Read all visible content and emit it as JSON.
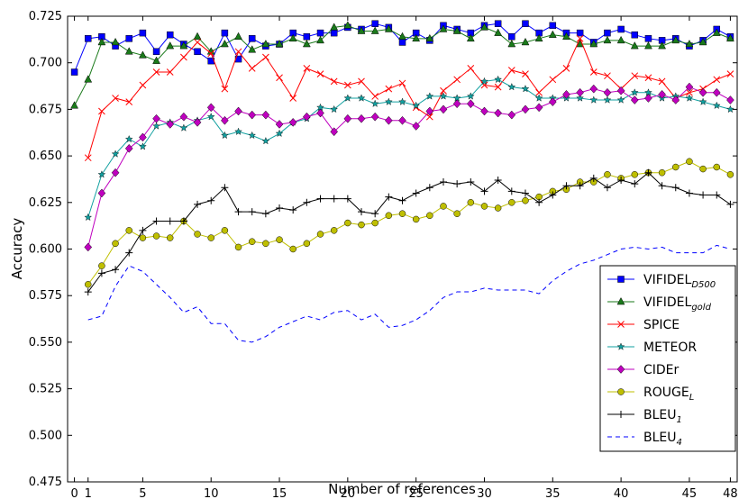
{
  "chart_data": {
    "type": "line",
    "xlabel": "Number of references",
    "ylabel": "Accuracy",
    "xlim": [
      -0.5,
      48.5
    ],
    "ylim": [
      0.475,
      0.725
    ],
    "xticks": [
      0,
      1,
      5,
      10,
      15,
      20,
      25,
      30,
      35,
      40,
      45,
      48
    ],
    "yticks": [
      {
        "value": 0.475,
        "label": "0.475"
      },
      {
        "value": 0.5,
        "label": "0.500"
      },
      {
        "value": 0.525,
        "label": "0.525"
      },
      {
        "value": 0.55,
        "label": "0.550"
      },
      {
        "value": 0.575,
        "label": "0.575"
      },
      {
        "value": 0.6,
        "label": "0.600"
      },
      {
        "value": 0.625,
        "label": "0.625"
      },
      {
        "value": 0.65,
        "label": "0.650"
      },
      {
        "value": 0.675,
        "label": "0.675"
      },
      {
        "value": 0.7,
        "label": "0.700"
      },
      {
        "value": 0.725,
        "label": "0.725"
      }
    ],
    "legend": "lower right",
    "x": [
      0,
      1,
      2,
      3,
      4,
      5,
      6,
      7,
      8,
      9,
      10,
      11,
      12,
      13,
      14,
      15,
      16,
      17,
      18,
      19,
      20,
      21,
      22,
      23,
      24,
      25,
      26,
      27,
      28,
      29,
      30,
      31,
      32,
      33,
      34,
      35,
      36,
      37,
      38,
      39,
      40,
      41,
      42,
      43,
      44,
      45,
      46,
      47,
      48
    ],
    "series": [
      {
        "name": "VIFIDEL",
        "name_sub": "D500",
        "color": "#0000ff",
        "marker": "square",
        "linestyle": "solid",
        "values": [
          0.695,
          0.713,
          0.714,
          0.709,
          0.713,
          0.716,
          0.706,
          0.715,
          0.71,
          0.706,
          0.701,
          0.716,
          0.702,
          0.713,
          0.709,
          0.71,
          0.716,
          0.714,
          0.716,
          0.716,
          0.719,
          0.718,
          0.721,
          0.719,
          0.711,
          0.716,
          0.712,
          0.72,
          0.718,
          0.716,
          0.72,
          0.721,
          0.714,
          0.721,
          0.716,
          0.72,
          0.716,
          0.716,
          0.711,
          0.716,
          0.718,
          0.715,
          0.713,
          0.712,
          0.713,
          0.709,
          0.712,
          0.718,
          0.714
        ]
      },
      {
        "name": "VIFIDEL",
        "name_sub": "gold",
        "color": "#1a7a1a",
        "marker": "triangle",
        "linestyle": "solid",
        "values": [
          0.677,
          0.691,
          0.711,
          0.711,
          0.706,
          0.704,
          0.701,
          0.709,
          0.709,
          0.714,
          0.706,
          0.71,
          0.714,
          0.707,
          0.71,
          0.71,
          0.713,
          0.71,
          0.712,
          0.719,
          0.72,
          0.717,
          0.717,
          0.718,
          0.714,
          0.713,
          0.713,
          0.718,
          0.717,
          0.713,
          0.719,
          0.716,
          0.71,
          0.711,
          0.713,
          0.715,
          0.714,
          0.71,
          0.71,
          0.712,
          0.712,
          0.709,
          0.709,
          0.709,
          0.712,
          0.71,
          0.711,
          0.716,
          0.713
        ]
      },
      {
        "name": "SPICE",
        "color": "#ff0000",
        "marker": "x",
        "linestyle": "solid",
        "values": [
          null,
          0.649,
          0.674,
          0.681,
          0.679,
          0.688,
          0.695,
          0.695,
          0.703,
          0.711,
          0.705,
          0.686,
          0.706,
          0.697,
          0.703,
          0.692,
          0.681,
          0.697,
          0.694,
          0.69,
          0.688,
          0.69,
          0.682,
          0.686,
          0.689,
          0.676,
          0.671,
          0.685,
          0.691,
          0.697,
          0.688,
          0.687,
          0.696,
          0.694,
          0.684,
          0.691,
          0.697,
          0.713,
          0.695,
          0.693,
          0.686,
          0.693,
          0.692,
          0.69,
          0.681,
          0.684,
          0.686,
          0.691,
          0.694
        ]
      },
      {
        "name": "METEOR",
        "color": "#12a0a0",
        "marker": "star",
        "linestyle": "solid",
        "values": [
          null,
          0.617,
          0.64,
          0.651,
          0.659,
          0.655,
          0.666,
          0.668,
          0.665,
          0.669,
          0.671,
          0.661,
          0.663,
          0.661,
          0.658,
          0.662,
          0.668,
          0.67,
          0.676,
          0.675,
          0.681,
          0.681,
          0.678,
          0.679,
          0.679,
          0.677,
          0.682,
          0.682,
          0.681,
          0.682,
          0.69,
          0.691,
          0.687,
          0.686,
          0.681,
          0.681,
          0.681,
          0.681,
          0.68,
          0.68,
          0.68,
          0.684,
          0.684,
          0.681,
          0.682,
          0.681,
          0.679,
          0.677,
          0.675
        ]
      },
      {
        "name": "CIDEr",
        "color": "#bf00bf",
        "marker": "diamond",
        "linestyle": "solid",
        "values": [
          null,
          0.601,
          0.63,
          0.641,
          0.654,
          0.66,
          0.67,
          0.667,
          0.671,
          0.668,
          0.676,
          0.669,
          0.674,
          0.672,
          0.672,
          0.667,
          0.668,
          0.671,
          0.673,
          0.663,
          0.67,
          0.67,
          0.671,
          0.669,
          0.669,
          0.666,
          0.674,
          0.675,
          0.678,
          0.678,
          0.674,
          0.673,
          0.672,
          0.675,
          0.676,
          0.679,
          0.683,
          0.684,
          0.686,
          0.684,
          0.685,
          0.68,
          0.681,
          0.683,
          0.68,
          0.687,
          0.684,
          0.684,
          0.68
        ]
      },
      {
        "name": "ROUGE",
        "name_sub": "L",
        "color": "#bfbf00",
        "marker": "circle",
        "linestyle": "solid",
        "values": [
          null,
          0.581,
          0.591,
          0.603,
          0.61,
          0.606,
          0.607,
          0.606,
          0.615,
          0.608,
          0.606,
          0.61,
          0.601,
          0.604,
          0.603,
          0.605,
          0.6,
          0.603,
          0.608,
          0.61,
          0.614,
          0.613,
          0.614,
          0.618,
          0.619,
          0.616,
          0.618,
          0.623,
          0.619,
          0.625,
          0.623,
          0.622,
          0.625,
          0.626,
          0.628,
          0.631,
          0.632,
          0.636,
          0.636,
          0.64,
          0.638,
          0.64,
          0.641,
          0.641,
          0.644,
          0.647,
          0.643,
          0.644,
          0.64
        ]
      },
      {
        "name": "BLEU",
        "name_sub": "1",
        "color": "#000000",
        "marker": "plus",
        "linestyle": "solid",
        "values": [
          null,
          0.577,
          0.587,
          0.589,
          0.598,
          0.61,
          0.615,
          0.615,
          0.615,
          0.624,
          0.626,
          0.633,
          0.62,
          0.62,
          0.619,
          0.622,
          0.621,
          0.625,
          0.627,
          0.627,
          0.627,
          0.62,
          0.619,
          0.628,
          0.626,
          0.63,
          0.633,
          0.636,
          0.635,
          0.636,
          0.631,
          0.637,
          0.631,
          0.63,
          0.625,
          0.629,
          0.634,
          0.634,
          0.638,
          0.633,
          0.637,
          0.635,
          0.641,
          0.634,
          0.633,
          0.63,
          0.629,
          0.629,
          0.624
        ]
      },
      {
        "name": "BLEU",
        "name_sub": "4",
        "color": "#0000ff",
        "marker": "none",
        "linestyle": "dashed",
        "values": [
          null,
          0.562,
          0.564,
          0.58,
          0.591,
          0.588,
          0.581,
          0.574,
          0.566,
          0.569,
          0.56,
          0.56,
          0.551,
          0.55,
          0.553,
          0.558,
          0.561,
          0.564,
          0.562,
          0.566,
          0.567,
          0.562,
          0.565,
          0.558,
          0.559,
          0.562,
          0.567,
          0.574,
          0.577,
          0.577,
          0.579,
          0.578,
          0.578,
          0.578,
          0.576,
          0.583,
          0.588,
          0.592,
          0.594,
          0.597,
          0.6,
          0.601,
          0.6,
          0.601,
          0.598,
          0.598,
          0.598,
          0.602,
          0.6
        ]
      }
    ]
  }
}
